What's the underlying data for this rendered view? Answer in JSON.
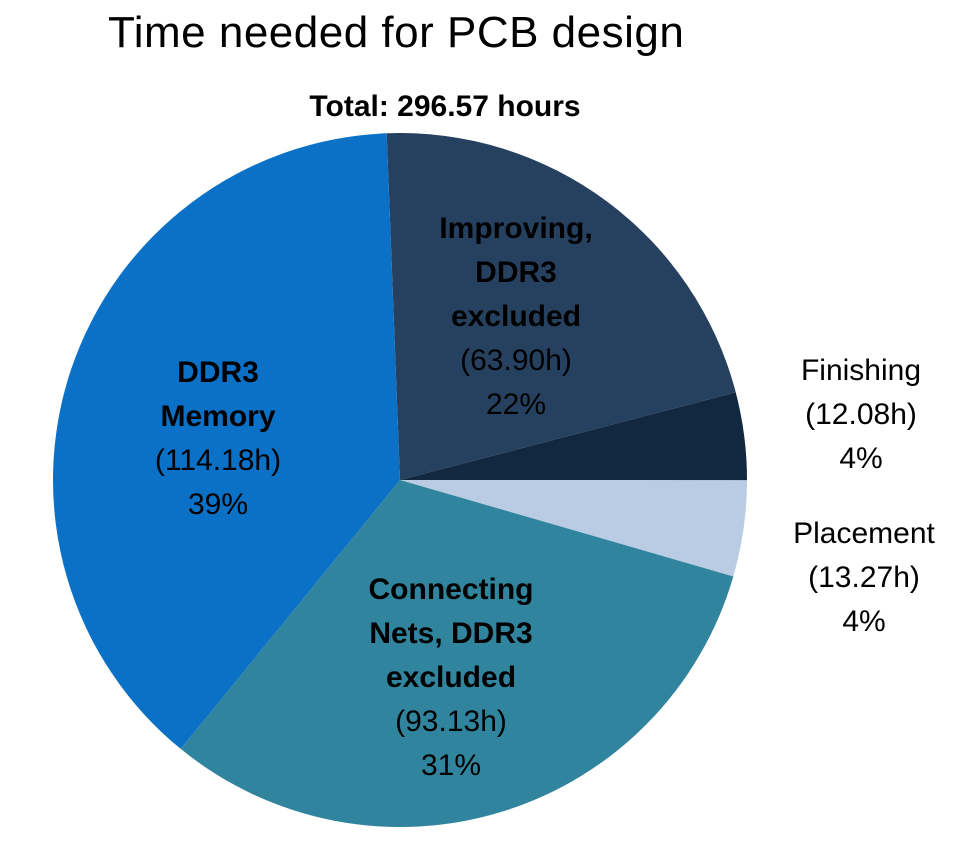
{
  "title": "Time needed for PCB design",
  "subtitle": "Total: 296.57 hours",
  "chart_data": {
    "type": "pie",
    "title": "Time needed for PCB design",
    "subtitle": "Total: 296.57 hours",
    "total_hours": 296.57,
    "unit": "hours",
    "direction": "clockwise",
    "start_deg_from_12": -2.2,
    "legend": "none",
    "slices": [
      {
        "key": "improving",
        "label": "Improving, DDR3 excluded",
        "label_lines": [
          "Improving,",
          "DDR3",
          "excluded"
        ],
        "hours": 63.9,
        "hours_label": "(63.90h)",
        "pct": 22,
        "pct_label": "22%",
        "color": "#26415f",
        "label_placement": "inside"
      },
      {
        "key": "finishing",
        "label": "Finishing",
        "label_lines": [
          "Finishing"
        ],
        "hours": 12.08,
        "hours_label": "(12.08h)",
        "pct": 4,
        "pct_label": "4%",
        "color": "#122840",
        "label_placement": "outside"
      },
      {
        "key": "placement",
        "label": "Placement",
        "label_lines": [
          "Placement"
        ],
        "hours": 13.27,
        "hours_label": "(13.27h)",
        "pct": 4,
        "pct_label": "4%",
        "color": "#b9cce4",
        "label_placement": "outside"
      },
      {
        "key": "connecting",
        "label": "Connecting Nets, DDR3 excluded",
        "label_lines": [
          "Connecting",
          "Nets, DDR3",
          "excluded"
        ],
        "hours": 93.13,
        "hours_label": "(93.13h)",
        "pct": 31,
        "pct_label": "31%",
        "color": "#31849d",
        "label_placement": "inside"
      },
      {
        "key": "ddr3",
        "label": "DDR3 Memory",
        "label_lines": [
          "DDR3",
          "Memory"
        ],
        "hours": 114.18,
        "hours_label": "(114.18h)",
        "pct": 39,
        "pct_label": "39%",
        "color": "#0a71c6",
        "label_placement": "inside"
      }
    ]
  }
}
